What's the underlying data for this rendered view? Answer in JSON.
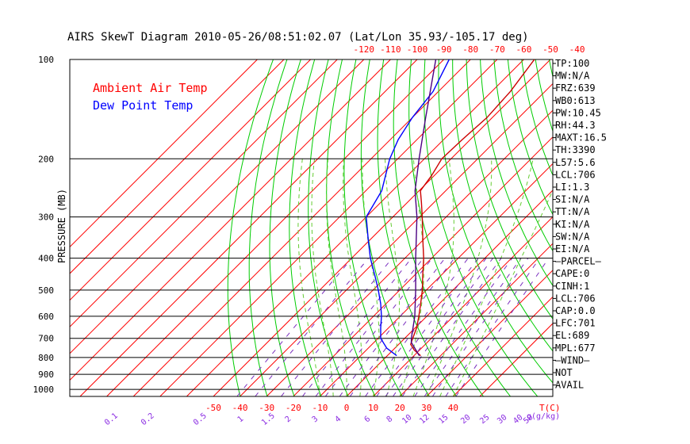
{
  "title": "AIRS SkewT Diagram 2010-05-26/08:51:02.07 (Lat/Lon 35.93/-105.17 deg)",
  "colors": {
    "isotherm": "#ff0000",
    "dry_adiabat": "#00cc00",
    "moist_adiabat": "#66cc33",
    "mixing_ratio": "#7b2fbf",
    "isobar": "#000000",
    "air_temp": "#cc0000",
    "dew_point": "#0000ff",
    "parcel": "#4b0082"
  },
  "chart_data": {
    "type": "line",
    "title": "AIRS SkewT Diagram 2010-05-26/08:51:02.07 (Lat/Lon 35.93/-105.17 deg)",
    "ylabel": "PRESSURE (MB)",
    "xlabel": "T(C)",
    "yscale": "log",
    "ylim": [
      1050,
      100
    ],
    "pressure_ticks": [
      100,
      200,
      300,
      400,
      500,
      600,
      700,
      800,
      900,
      1000
    ],
    "pressure_tick_labels": [
      "100",
      "200",
      "300",
      "400",
      "500",
      "600",
      "700",
      "800",
      "900",
      "1000"
    ],
    "top_temp_ticks": [
      -120,
      -110,
      -100,
      -90,
      -80,
      -70,
      -60,
      -50,
      -40
    ],
    "top_temp_labels": [
      "-120",
      "-110",
      "-100",
      "-90",
      "-80",
      "-70",
      "-60",
      "-50",
      "-40"
    ],
    "bottom_temp_ticks": [
      -50,
      -40,
      -30,
      -20,
      -10,
      0,
      10,
      20,
      30,
      40
    ],
    "bottom_temp_labels": [
      "-50",
      "-40",
      "-30",
      "-20",
      "-10",
      "0",
      "10",
      "20",
      "30",
      "40"
    ],
    "bottom_axis_label": "T(C)",
    "mixing_ratio_labels": [
      "0.1",
      "0.2",
      "0.5",
      "1",
      "1.5",
      "2",
      "3",
      "4",
      "6",
      "8",
      "10",
      "12",
      "15",
      "20",
      "25",
      "30",
      "40",
      "50"
    ],
    "mixing_ratio_unit": "g(g/kg)",
    "legend": [
      {
        "label": "Ambient Air Temp",
        "color": "#ff0000"
      },
      {
        "label": "Dew Point Temp",
        "color": "#0000ff"
      }
    ],
    "series": [
      {
        "name": "Ambient Air Temp",
        "points": [
          {
            "p": 790,
            "t": 12.5
          },
          {
            "p": 760,
            "t": 8.0
          },
          {
            "p": 730,
            "t": 4.5
          },
          {
            "p": 700,
            "t": 3.0
          },
          {
            "p": 650,
            "t": 0.5
          },
          {
            "p": 600,
            "t": -3.0
          },
          {
            "p": 550,
            "t": -7.0
          },
          {
            "p": 500,
            "t": -11.5
          },
          {
            "p": 450,
            "t": -17.0
          },
          {
            "p": 400,
            "t": -23.0
          },
          {
            "p": 350,
            "t": -30.5
          },
          {
            "p": 300,
            "t": -39.0
          },
          {
            "p": 270,
            "t": -45.0
          },
          {
            "p": 250,
            "t": -49.5
          },
          {
            "p": 225,
            "t": -51.0
          },
          {
            "p": 200,
            "t": -53.5
          },
          {
            "p": 175,
            "t": -53.0
          },
          {
            "p": 150,
            "t": -52.0
          },
          {
            "p": 125,
            "t": -53.0
          },
          {
            "p": 100,
            "t": -56.0
          }
        ]
      },
      {
        "name": "Dew Point Temp",
        "points": [
          {
            "p": 790,
            "t": 3.5
          },
          {
            "p": 750,
            "t": -3.0
          },
          {
            "p": 700,
            "t": -9.0
          },
          {
            "p": 650,
            "t": -13.0
          },
          {
            "p": 600,
            "t": -17.0
          },
          {
            "p": 550,
            "t": -22.0
          },
          {
            "p": 500,
            "t": -28.0
          },
          {
            "p": 450,
            "t": -35.0
          },
          {
            "p": 400,
            "t": -43.0
          },
          {
            "p": 350,
            "t": -51.0
          },
          {
            "p": 300,
            "t": -60.0
          },
          {
            "p": 250,
            "t": -64.0
          },
          {
            "p": 200,
            "t": -73.0
          },
          {
            "p": 175,
            "t": -77.0
          },
          {
            "p": 150,
            "t": -80.0
          },
          {
            "p": 125,
            "t": -82.0
          },
          {
            "p": 100,
            "t": -88.0
          }
        ]
      },
      {
        "name": "Parcel",
        "points": [
          {
            "p": 790,
            "t": 12.0
          },
          {
            "p": 720,
            "t": 4.0
          },
          {
            "p": 700,
            "t": 2.5
          },
          {
            "p": 600,
            "t": -4.5
          },
          {
            "p": 500,
            "t": -14.0
          },
          {
            "p": 400,
            "t": -26.0
          },
          {
            "p": 300,
            "t": -41.0
          },
          {
            "p": 250,
            "t": -51.5
          },
          {
            "p": 200,
            "t": -62.0
          },
          {
            "p": 150,
            "t": -75.0
          },
          {
            "p": 100,
            "t": -93.0
          }
        ]
      }
    ],
    "stats": [
      "TP:100",
      "MW:N/A",
      "FRZ:639",
      "WB0:613",
      "PW:10.45",
      "RH:44.3",
      "MAXT:16.5",
      "TH:3390",
      "L57:5.6",
      "LCL:706",
      "LI:1.3",
      "SI:N/A",
      "TT:N/A",
      "KI:N/A",
      "SW:N/A",
      "EI:N/A",
      "—PARCEL—",
      "CAPE:0",
      "CINH:1",
      "LCL:706",
      "CAP:0.0",
      "LFC:701",
      "EL:689",
      "MPL:677",
      "—WIND—",
      "NOT",
      "AVAIL"
    ]
  }
}
